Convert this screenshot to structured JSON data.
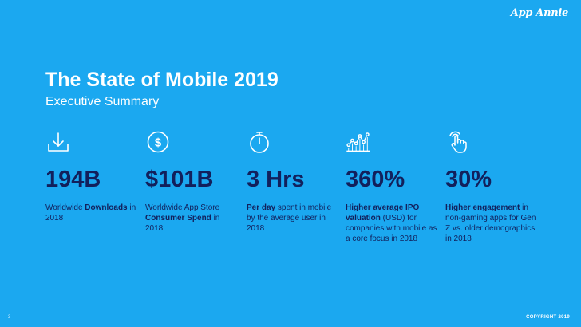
{
  "brand": {
    "logo_text": "App Annie"
  },
  "slide": {
    "title": "The State of Mobile 2019",
    "subtitle": "Executive Summary",
    "page_number": "3",
    "copyright": "COPYRIGHT 2019"
  },
  "stats": [
    {
      "icon": "download-icon",
      "value": "194B",
      "desc_pre": "Worldwide ",
      "desc_bold": "Downloads",
      "desc_post": " in 2018"
    },
    {
      "icon": "dollar-icon",
      "value": "$101B",
      "desc_pre": "Worldwide App Store ",
      "desc_bold": "Consumer Spend",
      "desc_post": " in 2018"
    },
    {
      "icon": "stopwatch-icon",
      "value": "3 Hrs",
      "desc_pre": "",
      "desc_bold": "Per day",
      "desc_post": " spent in mobile by the average user in 2018"
    },
    {
      "icon": "line-chart-icon",
      "value": "360%",
      "desc_pre": "",
      "desc_bold": "Higher average IPO valuation",
      "desc_post": " (USD) for companies with mobile as a core focus in 2018"
    },
    {
      "icon": "touch-icon",
      "value": "30%",
      "desc_pre": "",
      "desc_bold": "Higher engagement",
      "desc_post": " in non-gaming apps for Gen Z vs. older demographics in 2018"
    }
  ]
}
